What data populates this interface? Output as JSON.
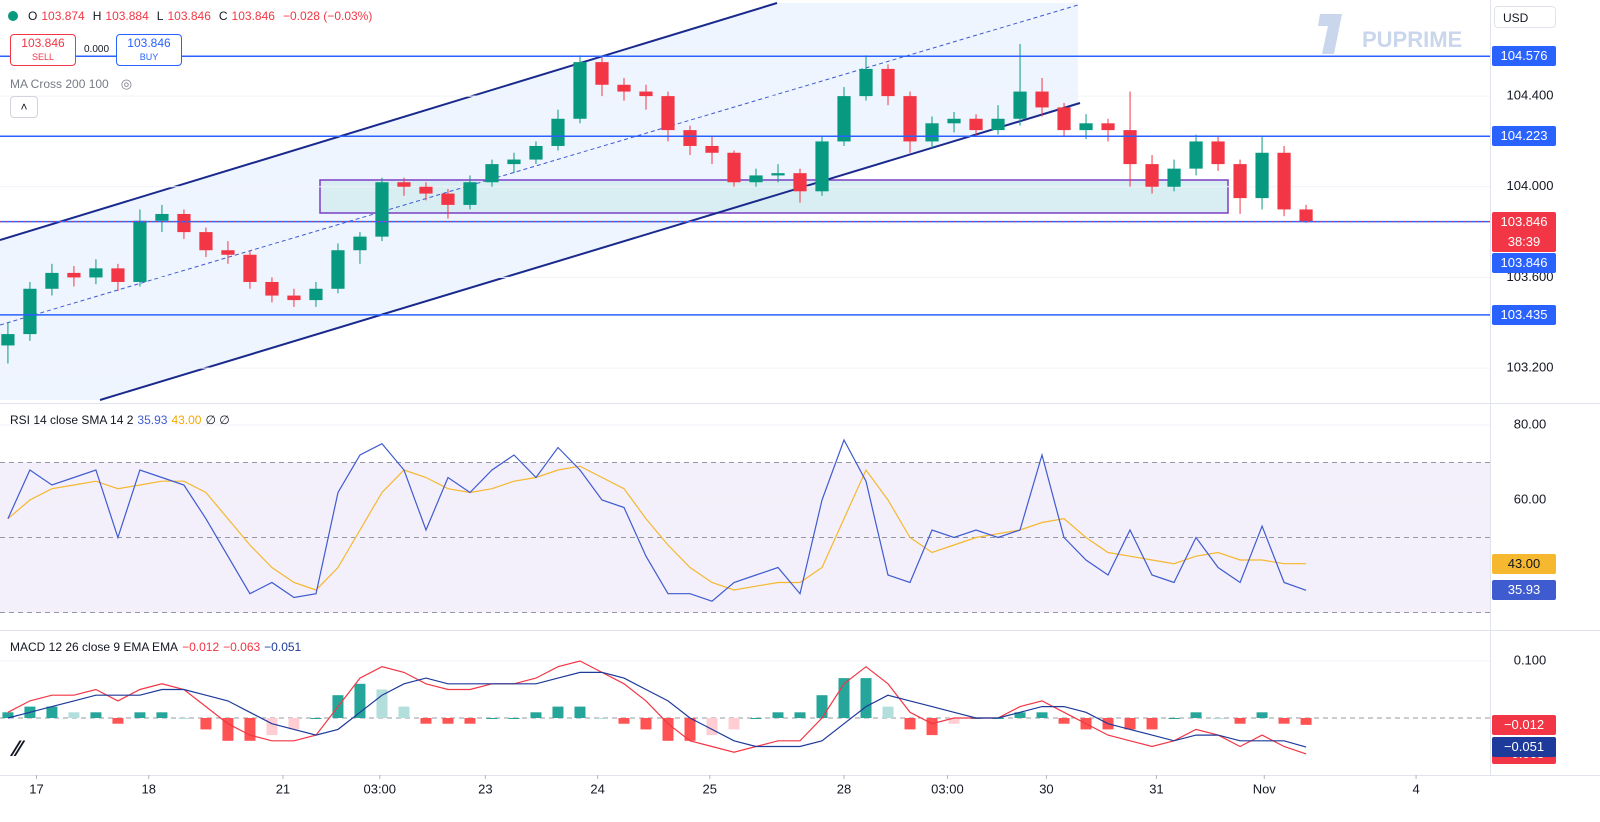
{
  "header": {
    "ohlc": [
      {
        "key": "O",
        "value": "103.874"
      },
      {
        "key": "H",
        "value": "103.884"
      },
      {
        "key": "L",
        "value": "103.846"
      },
      {
        "key": "C",
        "value": "103.846"
      }
    ],
    "change": "−0.028 (−0.03%)",
    "sell_price": "103.846",
    "sell": "SELL",
    "spread": "0.000",
    "buy_price": "103.846",
    "buy": "BUY",
    "currency": "USD",
    "brand": "PUPRIME"
  },
  "chart_data": [
    {
      "type": "candlestick",
      "indicator": "MA Cross 200 100",
      "up_color": "#089981",
      "down_color": "#f23645",
      "level_color": "#2962ff",
      "xlim": [
        -0.36,
        67.36
      ],
      "ylim": [
        103.046,
        104.824
      ],
      "yticks": [
        {
          "value": 103.2,
          "label": "103.200"
        },
        {
          "value": 103.6,
          "label": "103.600"
        },
        {
          "value": 104.0,
          "label": "104.000"
        },
        {
          "value": 104.4,
          "label": "104.400"
        }
      ],
      "xticks": [
        {
          "value": 1.3,
          "label": "17"
        },
        {
          "value": 6.4,
          "label": "18"
        },
        {
          "value": 12.5,
          "label": "21"
        },
        {
          "value": 16.9,
          "label": "03:00"
        },
        {
          "value": 21.7,
          "label": "23"
        },
        {
          "value": 26.8,
          "label": "24"
        },
        {
          "value": 31.9,
          "label": "25"
        },
        {
          "value": 38,
          "label": "28"
        },
        {
          "value": 42.7,
          "label": "03:00"
        },
        {
          "value": 47.2,
          "label": "30"
        },
        {
          "value": 52.2,
          "label": "31"
        },
        {
          "value": 57.1,
          "label": "Nov"
        },
        {
          "value": 64,
          "label": "4"
        }
      ],
      "levels": [
        104.576,
        104.223,
        103.846,
        103.435
      ],
      "last_price": 103.846,
      "countdown": "38:39",
      "candles": [
        [
          103.3,
          103.4,
          103.22,
          103.35
        ],
        [
          103.35,
          103.58,
          103.32,
          103.55
        ],
        [
          103.55,
          103.66,
          103.52,
          103.62
        ],
        [
          103.62,
          103.65,
          103.56,
          103.6
        ],
        [
          103.6,
          103.68,
          103.57,
          103.64
        ],
        [
          103.64,
          103.66,
          103.54,
          103.58
        ],
        [
          103.58,
          103.9,
          103.56,
          103.85
        ],
        [
          103.85,
          103.92,
          103.8,
          103.88
        ],
        [
          103.88,
          103.9,
          103.77,
          103.8
        ],
        [
          103.8,
          103.82,
          103.69,
          103.72
        ],
        [
          103.72,
          103.76,
          103.66,
          103.7
        ],
        [
          103.7,
          103.72,
          103.55,
          103.58
        ],
        [
          103.58,
          103.6,
          103.49,
          103.52
        ],
        [
          103.52,
          103.55,
          103.47,
          103.5
        ],
        [
          103.5,
          103.58,
          103.47,
          103.55
        ],
        [
          103.55,
          103.75,
          103.53,
          103.72
        ],
        [
          103.72,
          103.8,
          103.66,
          103.78
        ],
        [
          103.78,
          104.04,
          103.76,
          104.02
        ],
        [
          104.02,
          104.04,
          103.96,
          104.0
        ],
        [
          104.0,
          104.02,
          103.94,
          103.97
        ],
        [
          103.97,
          103.99,
          103.86,
          103.92
        ],
        [
          103.92,
          104.05,
          103.9,
          104.02
        ],
        [
          104.02,
          104.12,
          104.0,
          104.1
        ],
        [
          104.1,
          104.15,
          104.06,
          104.12
        ],
        [
          104.12,
          104.2,
          104.1,
          104.18
        ],
        [
          104.18,
          104.34,
          104.16,
          104.3
        ],
        [
          104.3,
          104.58,
          104.28,
          104.55
        ],
        [
          104.55,
          104.57,
          104.4,
          104.45
        ],
        [
          104.45,
          104.48,
          104.38,
          104.42
        ],
        [
          104.42,
          104.45,
          104.34,
          104.4
        ],
        [
          104.4,
          104.42,
          104.2,
          104.25
        ],
        [
          104.25,
          104.27,
          104.14,
          104.18
        ],
        [
          104.18,
          104.22,
          104.1,
          104.15
        ],
        [
          104.15,
          104.16,
          104.0,
          104.02
        ],
        [
          104.02,
          104.08,
          104.0,
          104.05
        ],
        [
          104.05,
          104.1,
          104.02,
          104.06
        ],
        [
          104.06,
          104.08,
          103.93,
          103.98
        ],
        [
          103.98,
          104.22,
          103.96,
          104.2
        ],
        [
          104.2,
          104.44,
          104.18,
          104.4
        ],
        [
          104.4,
          104.58,
          104.38,
          104.52
        ],
        [
          104.52,
          104.54,
          104.36,
          104.4
        ],
        [
          104.4,
          104.42,
          104.15,
          104.2
        ],
        [
          104.2,
          104.31,
          104.17,
          104.28
        ],
        [
          104.28,
          104.33,
          104.24,
          104.3
        ],
        [
          104.3,
          104.32,
          104.22,
          104.25
        ],
        [
          104.25,
          104.36,
          104.23,
          104.3
        ],
        [
          104.3,
          104.63,
          104.27,
          104.42
        ],
        [
          104.42,
          104.48,
          104.31,
          104.35
        ],
        [
          104.35,
          104.37,
          104.22,
          104.25
        ],
        [
          104.25,
          104.32,
          104.21,
          104.28
        ],
        [
          104.28,
          104.3,
          104.2,
          104.25
        ],
        [
          104.25,
          104.42,
          104.0,
          104.1
        ],
        [
          104.1,
          104.14,
          103.97,
          104.0
        ],
        [
          104.0,
          104.12,
          103.98,
          104.08
        ],
        [
          104.08,
          104.23,
          104.05,
          104.2
        ],
        [
          104.2,
          104.22,
          104.07,
          104.1
        ],
        [
          104.1,
          104.12,
          103.88,
          103.95
        ],
        [
          103.95,
          104.22,
          103.9,
          104.15
        ],
        [
          104.15,
          104.18,
          103.87,
          103.9
        ],
        [
          103.9,
          103.92,
          103.84,
          103.846
        ]
      ]
    },
    {
      "type": "line",
      "legend": "RSI 14 close SMA 14 2",
      "extra": "∅ ∅",
      "ylim": [
        25.33,
        85.33
      ],
      "yticks": [
        {
          "value": 80,
          "label": "80.00"
        },
        {
          "value": 60,
          "label": "60.00"
        }
      ],
      "bands": [
        70,
        50,
        30
      ],
      "band_fill": "#f3effb",
      "series": [
        {
          "color": "#3f5bd0",
          "last_label": "35.93",
          "values": [
            55,
            68,
            64,
            66,
            68,
            50,
            68,
            66,
            64,
            55,
            45,
            35,
            38,
            34,
            35,
            62,
            72,
            75,
            68,
            52,
            66,
            62,
            68,
            72,
            66,
            74,
            68,
            60,
            58,
            45,
            35,
            35,
            33,
            38,
            40,
            42,
            35,
            60,
            76,
            65,
            40,
            38,
            52,
            50,
            52,
            50,
            52,
            72,
            50,
            44,
            40,
            52,
            40,
            38,
            50,
            42,
            38,
            53,
            38,
            35.93
          ]
        },
        {
          "color": "#f5b82e",
          "last_label": "43.00",
          "values": [
            55,
            60,
            63,
            64,
            65,
            63,
            64,
            65,
            65,
            62,
            55,
            48,
            42,
            38,
            36,
            42,
            52,
            62,
            68,
            66,
            63,
            62,
            63,
            65,
            66,
            68,
            69,
            66,
            63,
            55,
            48,
            42,
            38,
            36,
            37,
            38,
            38,
            42,
            55,
            68,
            60,
            50,
            46,
            48,
            50,
            51,
            52,
            54,
            55,
            50,
            46,
            45,
            44,
            43,
            45,
            46,
            44,
            44,
            43,
            43
          ]
        }
      ]
    },
    {
      "type": "macd",
      "legend": "MACD 12 26 close 9 EMA EMA",
      "ylim": [
        -0.1,
        0.1509
      ],
      "yticks": [
        {
          "value": 0.1,
          "label": "0.100"
        }
      ],
      "zero_line": true,
      "hist_colors": [
        "#26a69a",
        "#b2dfdb",
        "#ff5252",
        "#ffcdd2"
      ],
      "series": [
        {
          "kind": "histogram",
          "color": "#f23645",
          "last_label": "−0.012",
          "values": [
            0.01,
            0.02,
            0.02,
            0.01,
            0.01,
            -0.01,
            0.01,
            0.01,
            0,
            -0.02,
            -0.04,
            -0.04,
            -0.03,
            -0.02,
            0,
            0.04,
            0.06,
            0.05,
            0.02,
            -0.01,
            -0.01,
            -0.01,
            0,
            0,
            0.01,
            0.02,
            0.02,
            0,
            -0.01,
            -0.02,
            -0.04,
            -0.04,
            -0.03,
            -0.02,
            0,
            0.01,
            0.01,
            0.04,
            0.07,
            0.07,
            0.02,
            -0.02,
            -0.03,
            -0.01,
            0,
            0,
            0.01,
            0.01,
            -0.01,
            -0.02,
            -0.02,
            -0.02,
            -0.02,
            0,
            0.01,
            0,
            -0.01,
            0.01,
            -0.01,
            -0.012
          ]
        },
        {
          "kind": "line",
          "color": "#f23645",
          "last_label": "−0.063",
          "values": [
            0.01,
            0.03,
            0.04,
            0.04,
            0.05,
            0.03,
            0.05,
            0.06,
            0.05,
            0.02,
            -0.01,
            -0.03,
            -0.04,
            -0.04,
            -0.03,
            0.02,
            0.07,
            0.09,
            0.08,
            0.06,
            0.05,
            0.05,
            0.06,
            0.06,
            0.07,
            0.09,
            0.1,
            0.08,
            0.06,
            0.03,
            -0.01,
            -0.04,
            -0.05,
            -0.06,
            -0.05,
            -0.04,
            -0.04,
            0.0,
            0.06,
            0.09,
            0.06,
            0.01,
            -0.01,
            0.0,
            0.0,
            0.0,
            0.02,
            0.03,
            0.01,
            -0.01,
            -0.03,
            -0.04,
            -0.05,
            -0.04,
            -0.02,
            -0.03,
            -0.05,
            -0.03,
            -0.05,
            -0.063
          ]
        },
        {
          "kind": "line",
          "color": "#1e3a9a",
          "last_label": "−0.051",
          "values": [
            0.0,
            0.01,
            0.02,
            0.03,
            0.04,
            0.04,
            0.04,
            0.05,
            0.05,
            0.04,
            0.03,
            0.01,
            -0.01,
            -0.02,
            -0.03,
            -0.02,
            0.01,
            0.04,
            0.06,
            0.07,
            0.06,
            0.06,
            0.06,
            0.06,
            0.06,
            0.07,
            0.08,
            0.08,
            0.07,
            0.05,
            0.03,
            0.0,
            -0.02,
            -0.04,
            -0.05,
            -0.05,
            -0.05,
            -0.04,
            -0.01,
            0.02,
            0.04,
            0.03,
            0.02,
            0.01,
            0.0,
            0.0,
            0.01,
            0.02,
            0.02,
            0.01,
            -0.01,
            -0.02,
            -0.03,
            -0.04,
            -0.03,
            -0.03,
            -0.04,
            -0.04,
            -0.04,
            -0.051
          ]
        }
      ]
    }
  ]
}
